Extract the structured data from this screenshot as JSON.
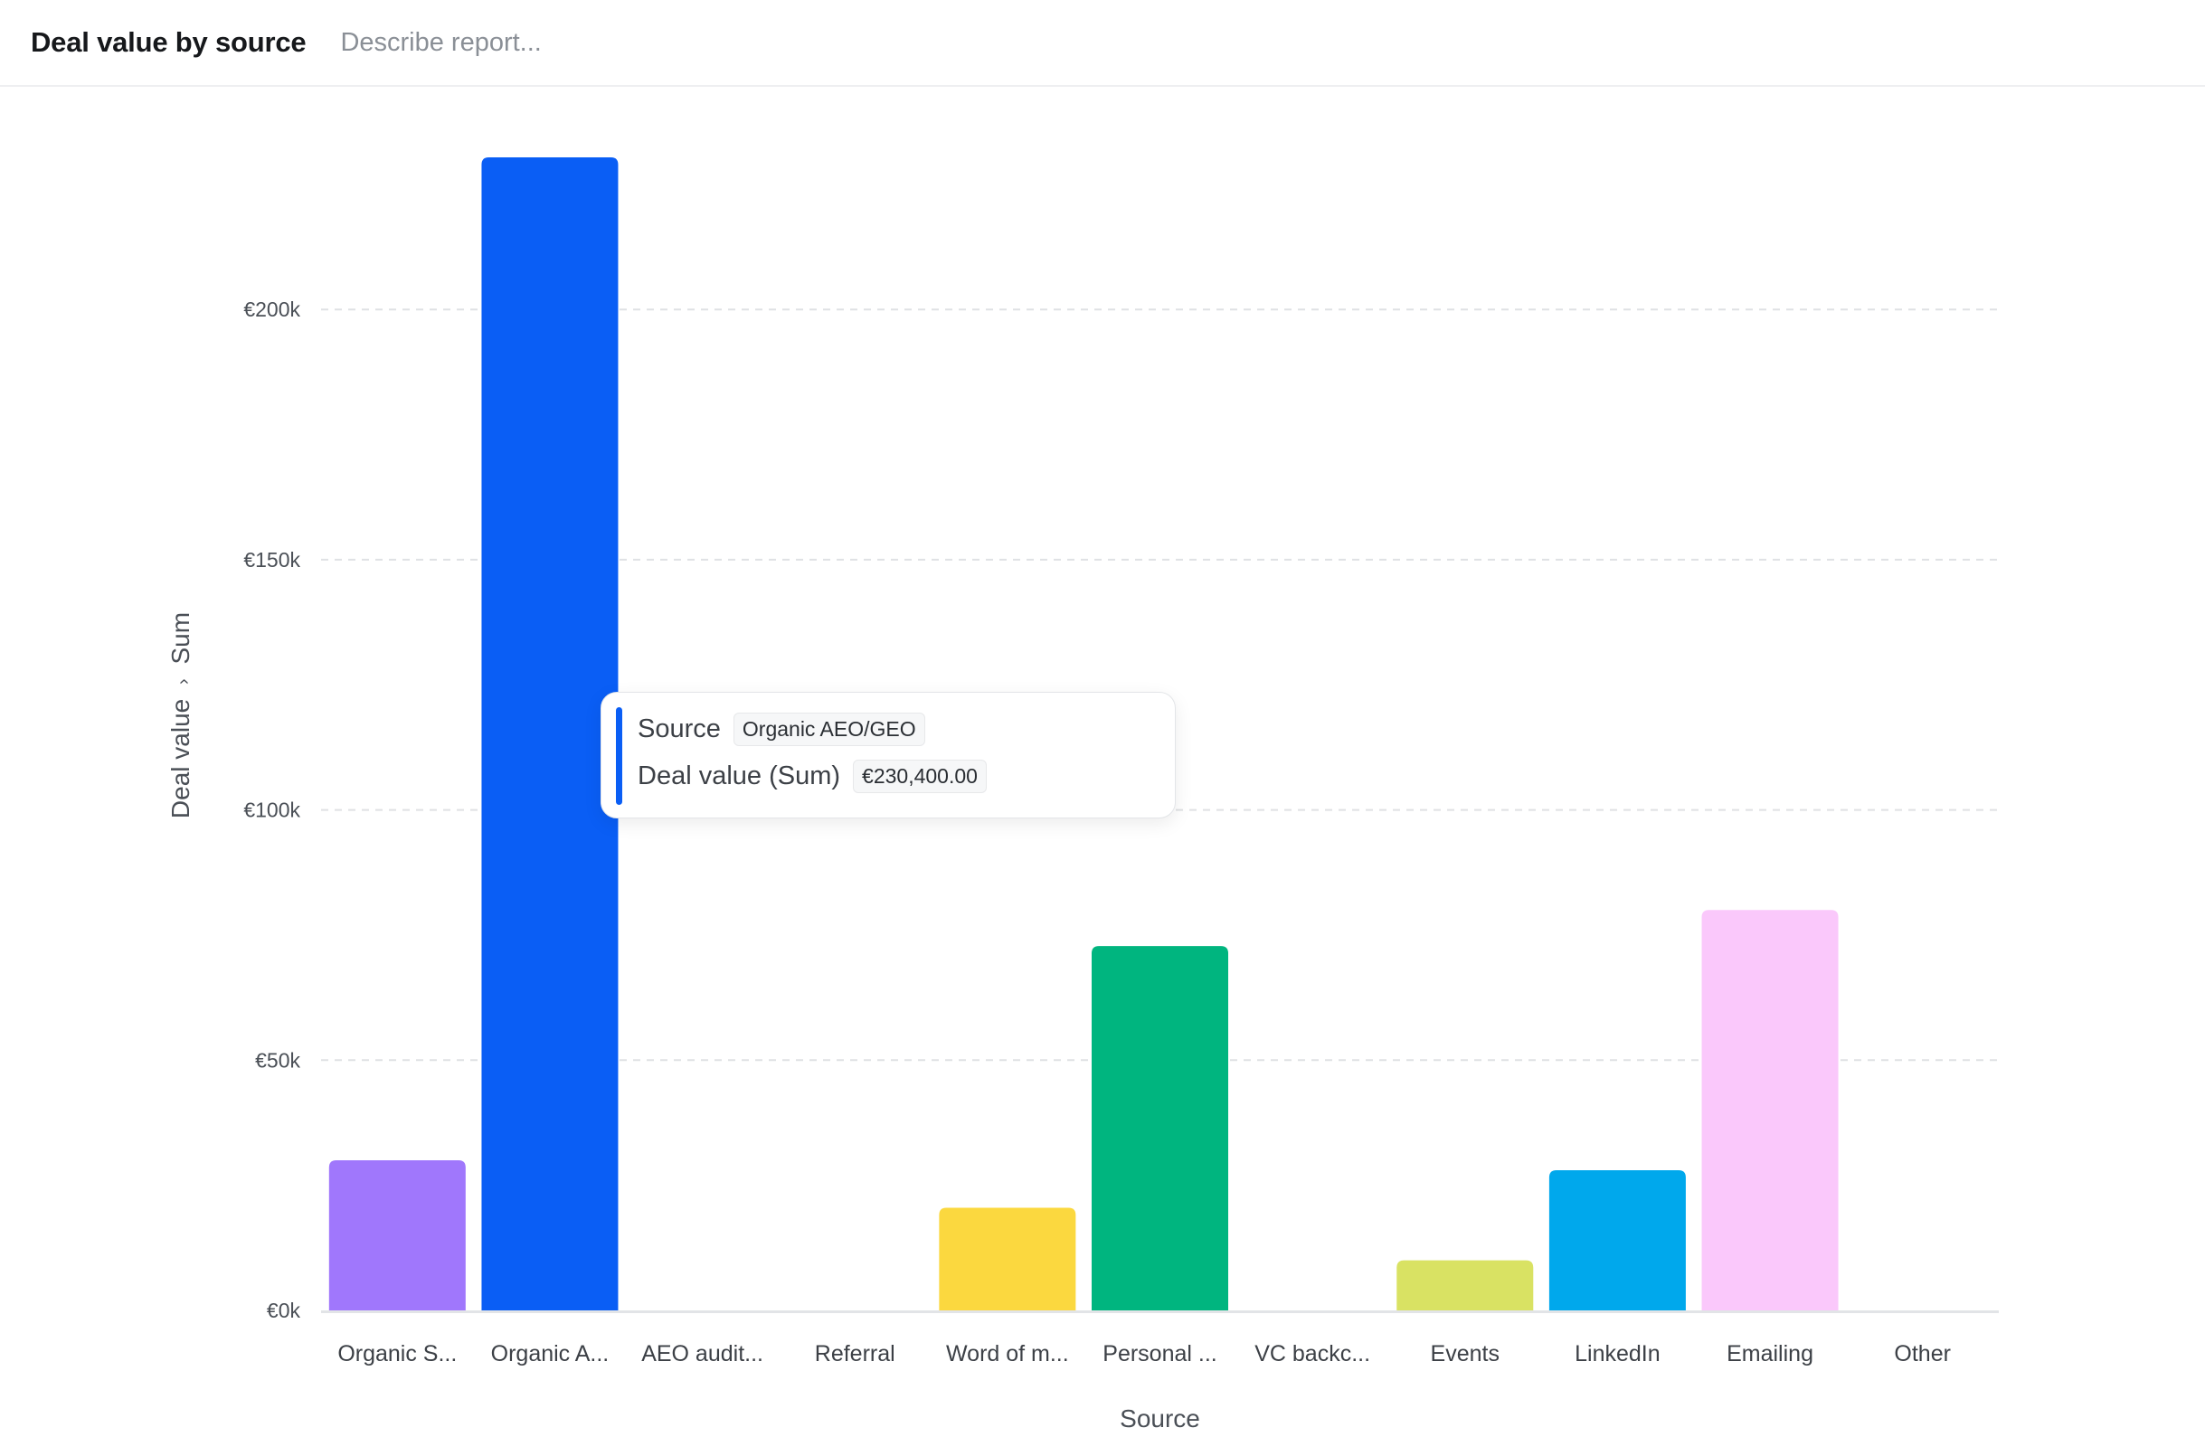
{
  "header": {
    "title": "Deal value by source",
    "description_placeholder": "Describe report..."
  },
  "chart_data": {
    "type": "bar",
    "xlabel": "Source",
    "ylabel_main": "Deal value",
    "ylabel_sep": "›",
    "ylabel_agg": "Sum",
    "ylim": [
      0,
      230400
    ],
    "yticks": [
      0,
      50000,
      100000,
      150000,
      200000
    ],
    "ytick_labels": [
      "€0k",
      "€50k",
      "€100k",
      "€150k",
      "€200k"
    ],
    "grid": true,
    "categories": [
      "Organic S...",
      "Organic A...",
      "AEO audit...",
      "Referral",
      "Word of m...",
      "Personal ...",
      "VC backc...",
      "Events",
      "LinkedIn",
      "Emailing",
      "Other"
    ],
    "values": [
      30000,
      230400,
      0,
      0,
      20500,
      72800,
      0,
      10000,
      28000,
      80000,
      0
    ],
    "colors": [
      "#a077fc",
      "#0a5ef5",
      "#cccccc",
      "#cccccc",
      "#fbd83f",
      "#00b57f",
      "#cccccc",
      "#d9e263",
      "#00a8ec",
      "#fac8fb",
      "#cccccc"
    ]
  },
  "tooltip": {
    "row1_key": "Source",
    "row1_value": "Organic AEO/GEO",
    "row2_key": "Deal value (Sum)",
    "row2_value": "€230,400.00",
    "accent": "#0a5ef5"
  }
}
